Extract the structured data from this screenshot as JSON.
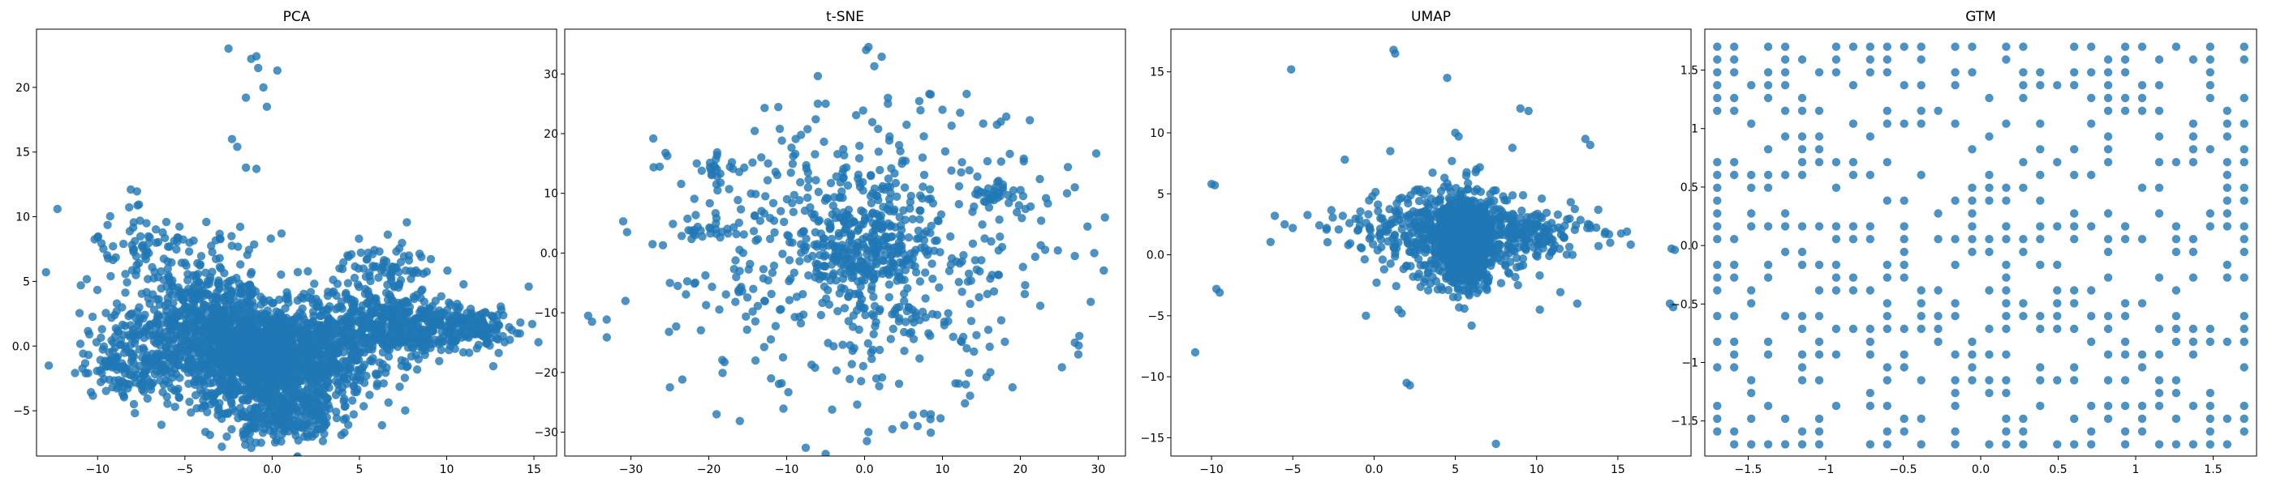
{
  "colors": {
    "points": "#1f77b4",
    "axes": "#000000",
    "background": "#ffffff"
  },
  "chart_data": [
    {
      "type": "scatter",
      "title": "PCA",
      "xlim": [
        -13.5,
        16.3
      ],
      "ylim": [
        -8.5,
        24.5
      ],
      "xticks": [
        -10,
        -5,
        0,
        5,
        10,
        15
      ],
      "yticks": [
        -5,
        0,
        5,
        10,
        15,
        20
      ],
      "grid": false,
      "clusters": [
        {
          "cx": 0,
          "cy": -1,
          "sx": 2.8,
          "sy": 2.0,
          "n": 1500
        },
        {
          "cx": -4.5,
          "cy": 1.5,
          "sx": 2.5,
          "sy": 2.0,
          "n": 450
        },
        {
          "cx": 7,
          "cy": 1.5,
          "sx": 2.5,
          "sy": 1.2,
          "n": 450
        },
        {
          "cx": -8,
          "cy": -1.5,
          "sx": 1.5,
          "sy": 1.2,
          "n": 120
        },
        {
          "cx": 0.5,
          "cy": -5.5,
          "sx": 1.5,
          "sy": 1.0,
          "n": 200
        },
        {
          "cx": 6.5,
          "cy": 5.5,
          "sx": 1.5,
          "sy": 1.5,
          "n": 100
        },
        {
          "cx": -7,
          "cy": 7,
          "sx": 1.8,
          "sy": 1.5,
          "n": 80
        },
        {
          "cx": 11.5,
          "cy": 1.5,
          "sx": 1.2,
          "sy": 0.8,
          "n": 90
        },
        {
          "cx": -3,
          "cy": 4.5,
          "sx": 1.5,
          "sy": 2.0,
          "n": 120
        }
      ],
      "points": [
        [
          -2.5,
          23
        ],
        [
          -1.2,
          22.2
        ],
        [
          -0.9,
          22.4
        ],
        [
          -0.8,
          21.5
        ],
        [
          0.3,
          21.3
        ],
        [
          -0.5,
          20
        ],
        [
          -1.5,
          19.2
        ],
        [
          -0.3,
          18.5
        ],
        [
          -2.3,
          16
        ],
        [
          -2,
          15.4
        ],
        [
          -1.5,
          13.8
        ],
        [
          -0.9,
          13.7
        ],
        [
          -12.3,
          10.6
        ],
        [
          -10,
          8.4
        ],
        [
          -8.1,
          12.1
        ],
        [
          14.7,
          4.6
        ],
        [
          14.9,
          1.7
        ],
        [
          -2.6,
          -7
        ],
        [
          1.5,
          -7.3
        ]
      ]
    },
    {
      "type": "scatter",
      "title": "t-SNE",
      "xlim": [
        -38.5,
        33.5
      ],
      "ylim": [
        -34,
        37.5
      ],
      "xticks": [
        -30,
        -20,
        -10,
        0,
        10,
        20,
        30
      ],
      "yticks": [
        -30,
        -20,
        -10,
        0,
        10,
        20,
        30
      ],
      "grid": false,
      "clusters": [
        {
          "cx": 0,
          "cy": 0,
          "sx": 4,
          "sy": 4,
          "n": 220
        },
        {
          "cx": 0,
          "cy": 0,
          "sx": 12,
          "sy": 12,
          "n": 500
        },
        {
          "cx": -20,
          "cy": 4,
          "sx": 2,
          "sy": 1,
          "n": 25
        },
        {
          "cx": 17,
          "cy": 10,
          "sx": 1.5,
          "sy": 1.5,
          "n": 30
        },
        {
          "cx": -19,
          "cy": 14,
          "sx": 1.5,
          "sy": 1.5,
          "n": 20
        },
        {
          "cx": 0,
          "cy": 11,
          "sx": 2.5,
          "sy": 1.5,
          "n": 25
        },
        {
          "cx": 6,
          "cy": -11,
          "sx": 2,
          "sy": 1.5,
          "n": 20
        }
      ],
      "points": [
        [
          -31,
          5.3
        ],
        [
          -30.5,
          3.5
        ],
        [
          -35.5,
          -10.5
        ],
        [
          -35,
          -11.5
        ],
        [
          0.5,
          34.5
        ],
        [
          0.2,
          34
        ],
        [
          3,
          26
        ],
        [
          3,
          25
        ],
        [
          -6,
          25
        ],
        [
          -25,
          -5
        ],
        [
          -24,
          -5.5
        ],
        [
          -25,
          -22.5
        ],
        [
          -19,
          -27
        ],
        [
          0.5,
          -30
        ],
        [
          0.3,
          -31.5
        ],
        [
          8.5,
          -27
        ],
        [
          13,
          -22
        ],
        [
          19,
          -22.5
        ],
        [
          27,
          -15
        ],
        [
          27.5,
          -15.5
        ],
        [
          26,
          10
        ],
        [
          27,
          11
        ],
        [
          29.5,
          0
        ],
        [
          27,
          -0.5
        ],
        [
          17,
          21.5
        ],
        [
          17.5,
          22
        ],
        [
          10,
          24
        ],
        [
          -5,
          25
        ],
        [
          -14,
          -18
        ],
        [
          -12,
          -21
        ]
      ]
    },
    {
      "type": "scatter",
      "title": "UMAP",
      "xlim": [
        -12.5,
        19.5
      ],
      "ylim": [
        -16.5,
        18.5
      ],
      "xticks": [
        -10,
        -5,
        0,
        5,
        10,
        15
      ],
      "yticks": [
        -15,
        -10,
        -5,
        0,
        5,
        10,
        15
      ],
      "grid": false,
      "clusters": [
        {
          "cx": 5.5,
          "cy": 1.0,
          "sx": 0.8,
          "sy": 1.6,
          "n": 800
        },
        {
          "cx": 5.5,
          "cy": 1.5,
          "sx": 2.5,
          "sy": 2.2,
          "n": 400
        },
        {
          "cx": 3,
          "cy": 2,
          "sx": 3.0,
          "sy": 1.0,
          "n": 150
        },
        {
          "cx": 9,
          "cy": 2,
          "sx": 2.5,
          "sy": 1.0,
          "n": 150
        }
      ],
      "points": [
        [
          -11,
          -8
        ],
        [
          -10,
          5.8
        ],
        [
          -9.8,
          5.7
        ],
        [
          -9.7,
          -2.8
        ],
        [
          -9.5,
          -3.1
        ],
        [
          -5.5,
          2.5
        ],
        [
          -5,
          2.2
        ],
        [
          -5.1,
          15.2
        ],
        [
          1.2,
          16.8
        ],
        [
          1.3,
          16.5
        ],
        [
          2,
          -10.5
        ],
        [
          2.2,
          -10.7
        ],
        [
          -1.8,
          7.8
        ],
        [
          1,
          8.5
        ],
        [
          4.5,
          14.5
        ],
        [
          5,
          10
        ],
        [
          5.2,
          9.7
        ],
        [
          9,
          12
        ],
        [
          9.5,
          11.8
        ],
        [
          13,
          9.5
        ],
        [
          13.3,
          9
        ],
        [
          7.5,
          -15.5
        ],
        [
          18.3,
          0.5
        ],
        [
          18.5,
          0.4
        ],
        [
          18.2,
          -4
        ],
        [
          18.4,
          -4.3
        ],
        [
          1.5,
          -4.5
        ],
        [
          1.7,
          -4.8
        ],
        [
          -0.5,
          -5
        ],
        [
          12.5,
          -4
        ],
        [
          10.2,
          -4.5
        ],
        [
          6,
          -5.8
        ],
        [
          0.5,
          3
        ],
        [
          1,
          2.5
        ]
      ]
    },
    {
      "type": "scatter",
      "title": "GTM",
      "xlim": [
        -1.78,
        1.78
      ],
      "ylim": [
        -1.8,
        1.85
      ],
      "xticks": [
        -1.5,
        -1.0,
        -0.5,
        0.0,
        0.5,
        1.0,
        1.5
      ],
      "yticks": [
        -1.5,
        -1.0,
        -0.5,
        0.0,
        0.5,
        1.0,
        1.5
      ],
      "grid": false,
      "lattice": {
        "nx": 32,
        "ny": 32,
        "min": -1.7,
        "max": 1.7,
        "occupancy": 0.42
      }
    }
  ]
}
